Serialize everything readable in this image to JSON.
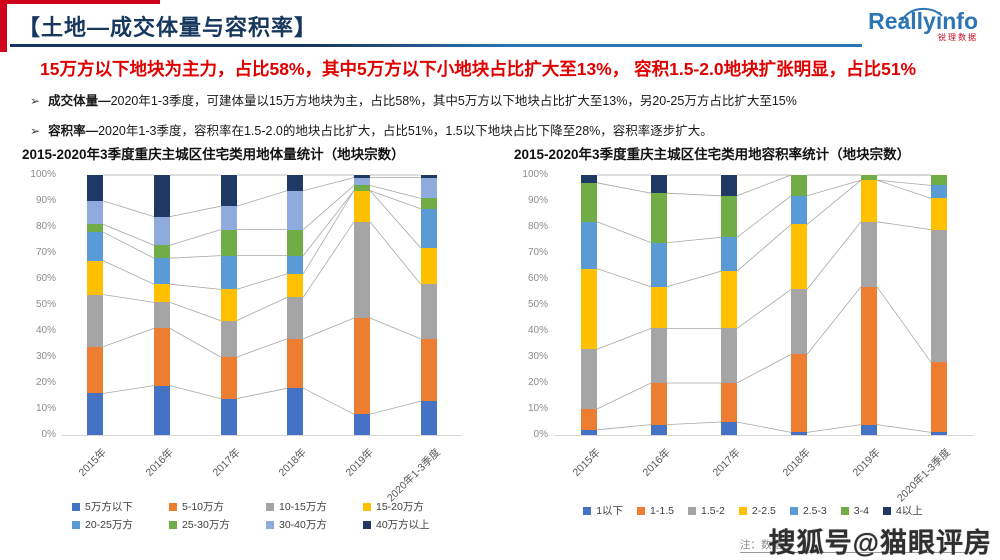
{
  "header": {
    "title": "【土地—成交体量与容积率】",
    "logo_brand": "Reallyinfo",
    "logo_sub": "锐理数据"
  },
  "headline": "15万方以下地块为主力，占比58%，其中5万方以下小地块占比扩大至13%， 容积1.5-2.0地块扩张明显，占比51%",
  "bullets": [
    {
      "lead": "成交体量—",
      "text": "2020年1-3季度，可建体量以15万方地块为主，占比58%，其中5万方以下地块占比扩大至13%，另20-25万方占比扩大至15%"
    },
    {
      "lead": "容积率—",
      "text": "2020年1-3季度，容积率在1.5-2.0的地块占比扩大，占比51%，1.5以下地块占比下降至28%，容积率逐步扩大。"
    }
  ],
  "footer": {
    "note": "注：数据",
    "watermark": "搜狐号@猫眼评房"
  },
  "chart_data": [
    {
      "type": "bar",
      "stacked": true,
      "percent": true,
      "title": "2015-2020年3季度重庆主城区住宅类用地体量统计（地块宗数）",
      "categories": [
        "2015年",
        "2016年",
        "2017年",
        "2018年",
        "2019年",
        "2020年1-3季度"
      ],
      "series": [
        {
          "name": "5万方以下",
          "color": "#4472C4",
          "values": [
            16,
            19,
            14,
            18,
            8,
            13
          ]
        },
        {
          "name": "5-10万方",
          "color": "#ED7D31",
          "values": [
            18,
            22,
            16,
            19,
            37,
            24
          ]
        },
        {
          "name": "10-15万方",
          "color": "#A5A5A5",
          "values": [
            20,
            10,
            14,
            16,
            37,
            21
          ]
        },
        {
          "name": "15-20万方",
          "color": "#FFC000",
          "values": [
            13,
            7,
            12,
            9,
            12,
            14
          ]
        },
        {
          "name": "20-25万方",
          "color": "#5B9BD5",
          "values": [
            11,
            10,
            13,
            7,
            0,
            15
          ]
        },
        {
          "name": "25-30万方",
          "color": "#70AD47",
          "values": [
            3,
            5,
            10,
            10,
            2,
            4
          ]
        },
        {
          "name": "30-40万方",
          "color": "#8FAADC",
          "values": [
            9,
            11,
            9,
            15,
            3,
            8
          ]
        },
        {
          "name": "40万方以上",
          "color": "#203864",
          "values": [
            10,
            16,
            12,
            6,
            1,
            1
          ]
        }
      ],
      "ylim": [
        0,
        100
      ],
      "yticks": [
        "0%",
        "10%",
        "20%",
        "30%",
        "40%",
        "50%",
        "60%",
        "70%",
        "80%",
        "90%",
        "100%"
      ],
      "grid": false,
      "legend_position": "bottom"
    },
    {
      "type": "bar",
      "stacked": true,
      "percent": true,
      "title": "2015-2020年3季度重庆主城区住宅类用地容积率统计（地块宗数）",
      "categories": [
        "2015年",
        "2016年",
        "2017年",
        "2018年",
        "2019年",
        "2020年1-3季度"
      ],
      "series": [
        {
          "name": "1以下",
          "color": "#4472C4",
          "values": [
            2,
            4,
            5,
            1,
            4,
            1
          ]
        },
        {
          "name": "1-1.5",
          "color": "#ED7D31",
          "values": [
            8,
            16,
            15,
            30,
            53,
            27
          ]
        },
        {
          "name": "1.5-2",
          "color": "#A5A5A5",
          "values": [
            23,
            21,
            21,
            25,
            25,
            51
          ]
        },
        {
          "name": "2-2.5",
          "color": "#FFC000",
          "values": [
            31,
            16,
            22,
            25,
            16,
            12
          ]
        },
        {
          "name": "2.5-3",
          "color": "#5B9BD5",
          "values": [
            18,
            17,
            13,
            11,
            0,
            5
          ]
        },
        {
          "name": "3-4",
          "color": "#70AD47",
          "values": [
            15,
            19,
            16,
            8,
            2,
            4
          ]
        },
        {
          "name": "4以上",
          "color": "#203864",
          "values": [
            3,
            7,
            8,
            0,
            0,
            0
          ]
        }
      ],
      "ylim": [
        0,
        100
      ],
      "yticks": [
        "0%",
        "10%",
        "20%",
        "30%",
        "40%",
        "50%",
        "60%",
        "70%",
        "80%",
        "90%",
        "100%"
      ],
      "grid": false,
      "legend_position": "bottom"
    }
  ]
}
